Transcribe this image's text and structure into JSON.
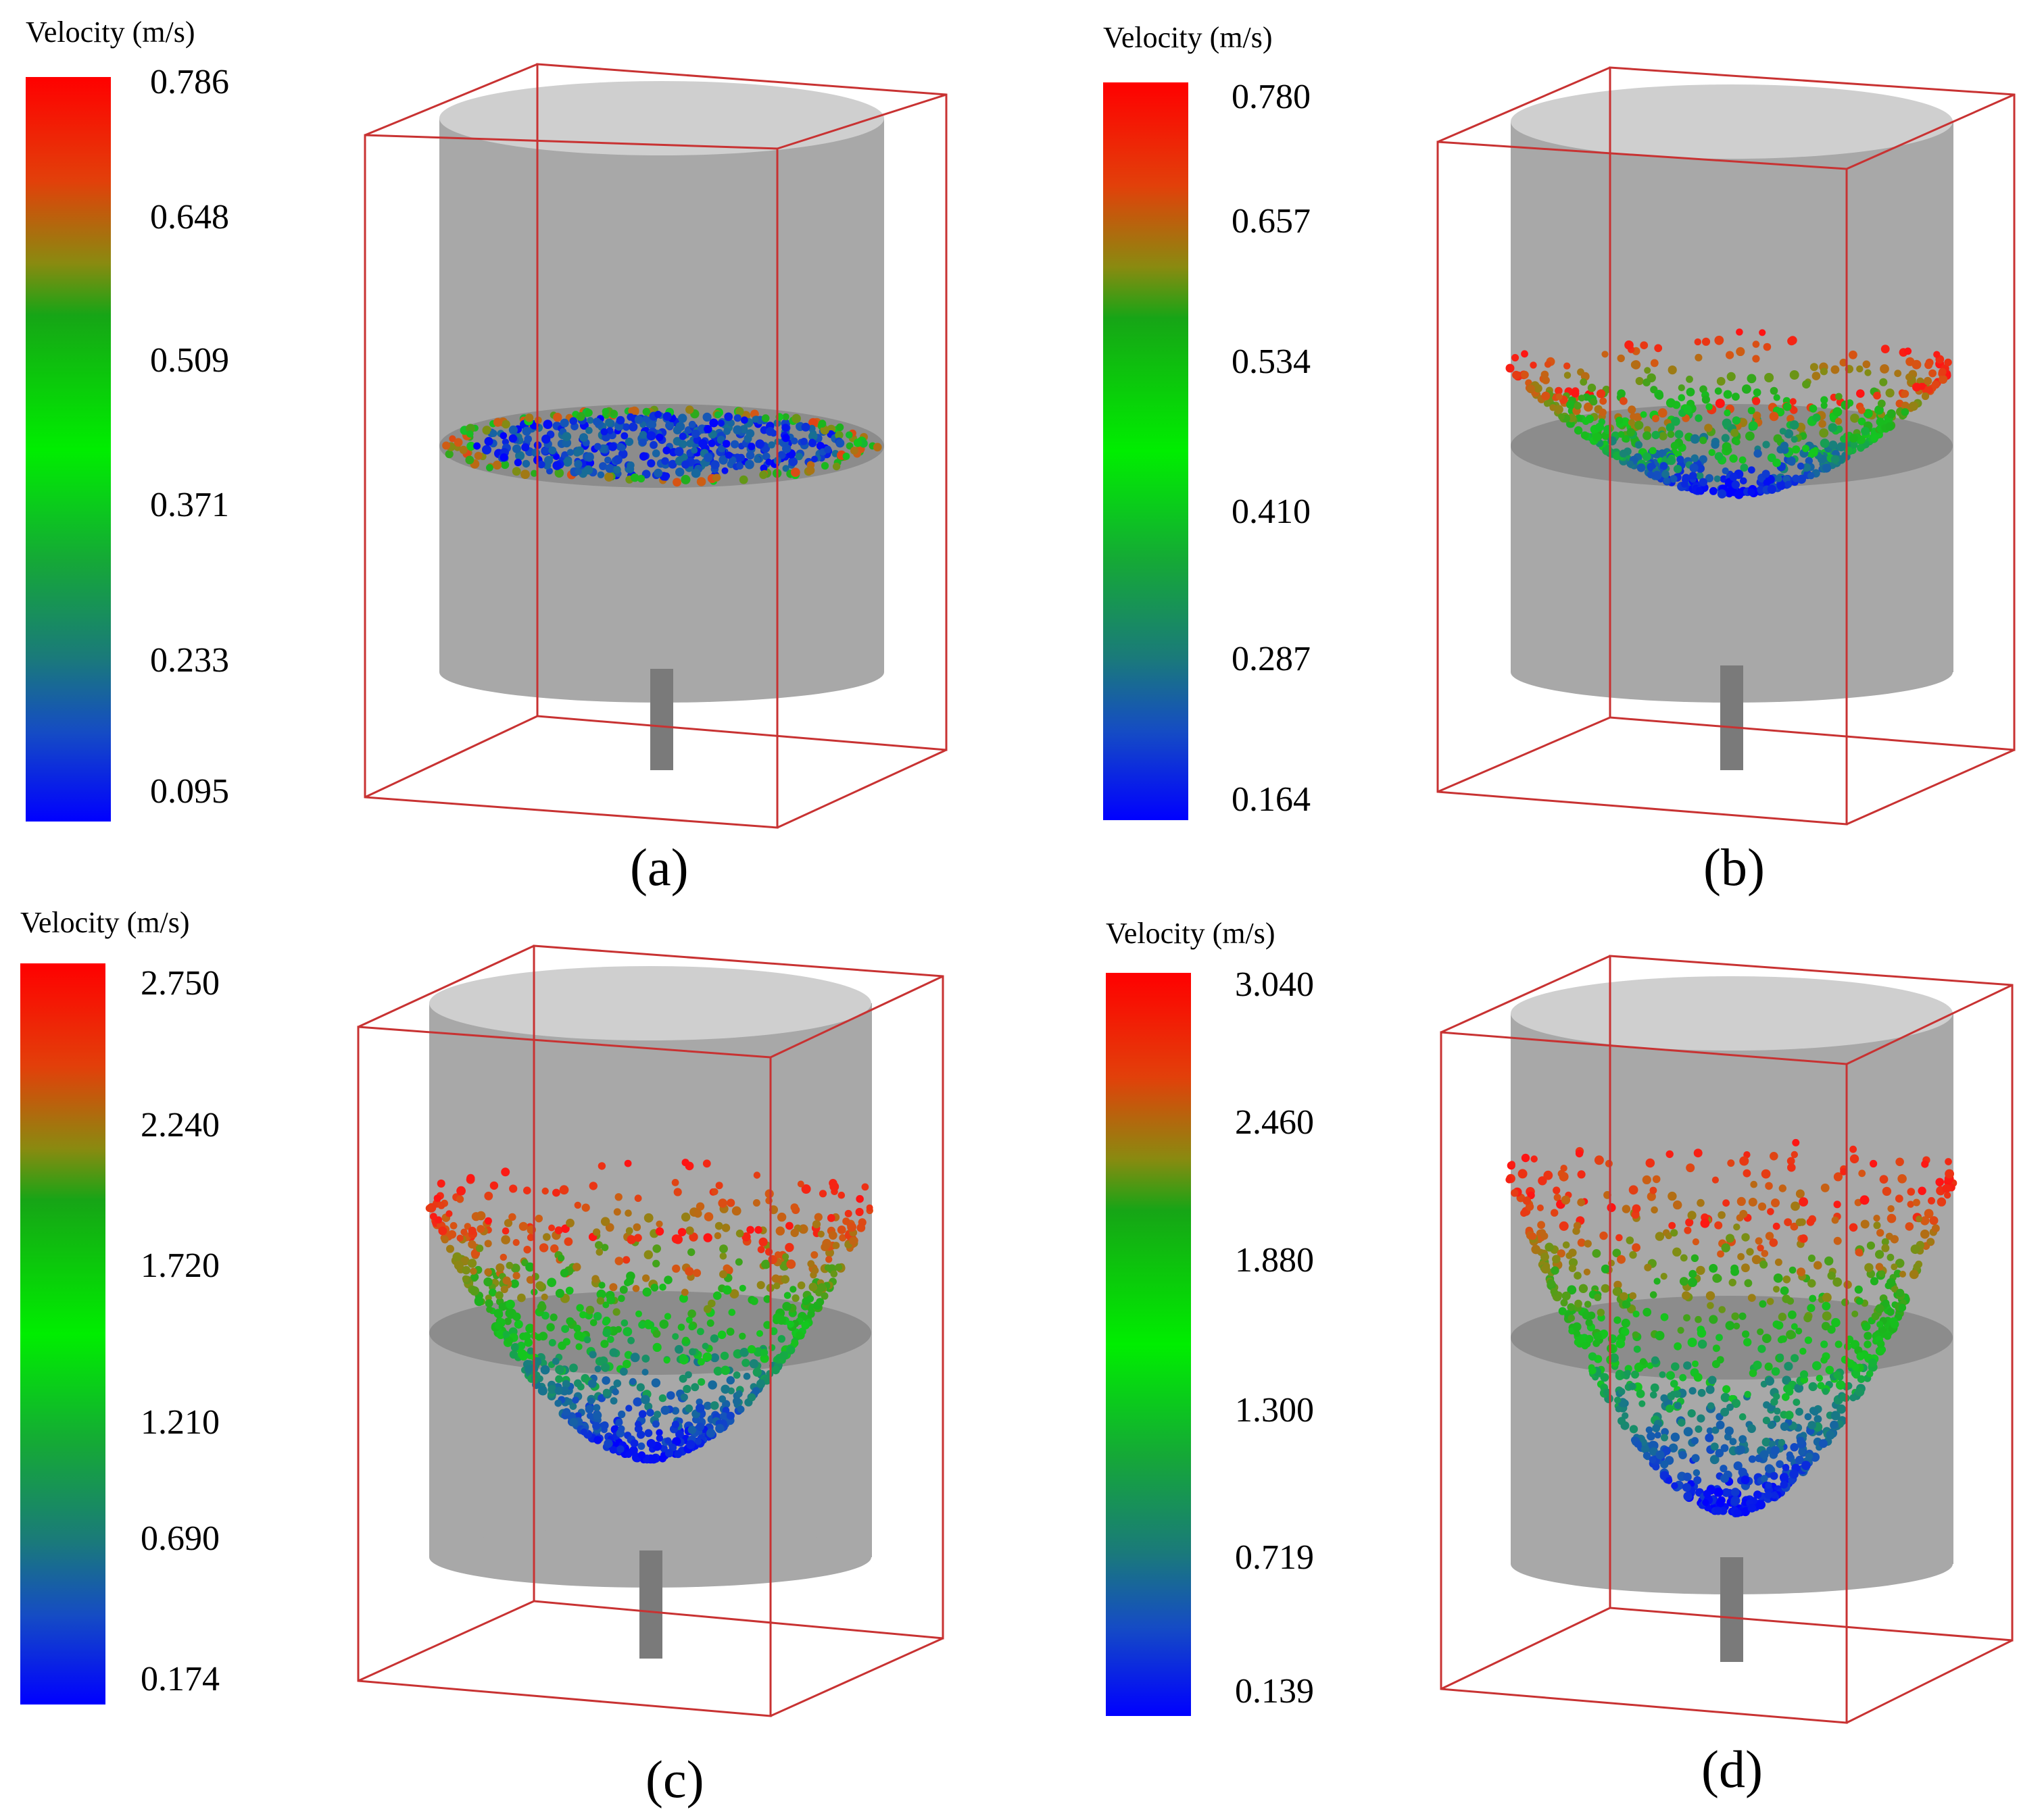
{
  "panels": [
    {
      "id": "a",
      "legend_title": "Velocity (m/s)",
      "ticks": [
        "0.786",
        "0.648",
        "0.509",
        "0.371",
        "0.233",
        "0.095"
      ],
      "caption": "(a)"
    },
    {
      "id": "b",
      "legend_title": "Velocity (m/s)",
      "ticks": [
        "0.780",
        "0.657",
        "0.534",
        "0.410",
        "0.287",
        "0.164"
      ],
      "caption": "(b)"
    },
    {
      "id": "c",
      "legend_title": "Velocity (m/s)",
      "ticks": [
        "2.750",
        "2.240",
        "1.720",
        "1.210",
        "0.690",
        "0.174"
      ],
      "caption": "(c)"
    },
    {
      "id": "d",
      "legend_title": "Velocity (m/s)",
      "ticks": [
        "3.040",
        "2.460",
        "1.880",
        "1.300",
        "0.719",
        "0.139"
      ],
      "caption": "(d)"
    }
  ],
  "colors": {
    "box_edge": "#c83232",
    "cylinder_body": "#a8a8a8",
    "cylinder_top": "#cfcfcf",
    "particle_fast": "#ff1a1a",
    "particle_mid": "#22cc22",
    "particle_slow": "#0a28c8"
  }
}
